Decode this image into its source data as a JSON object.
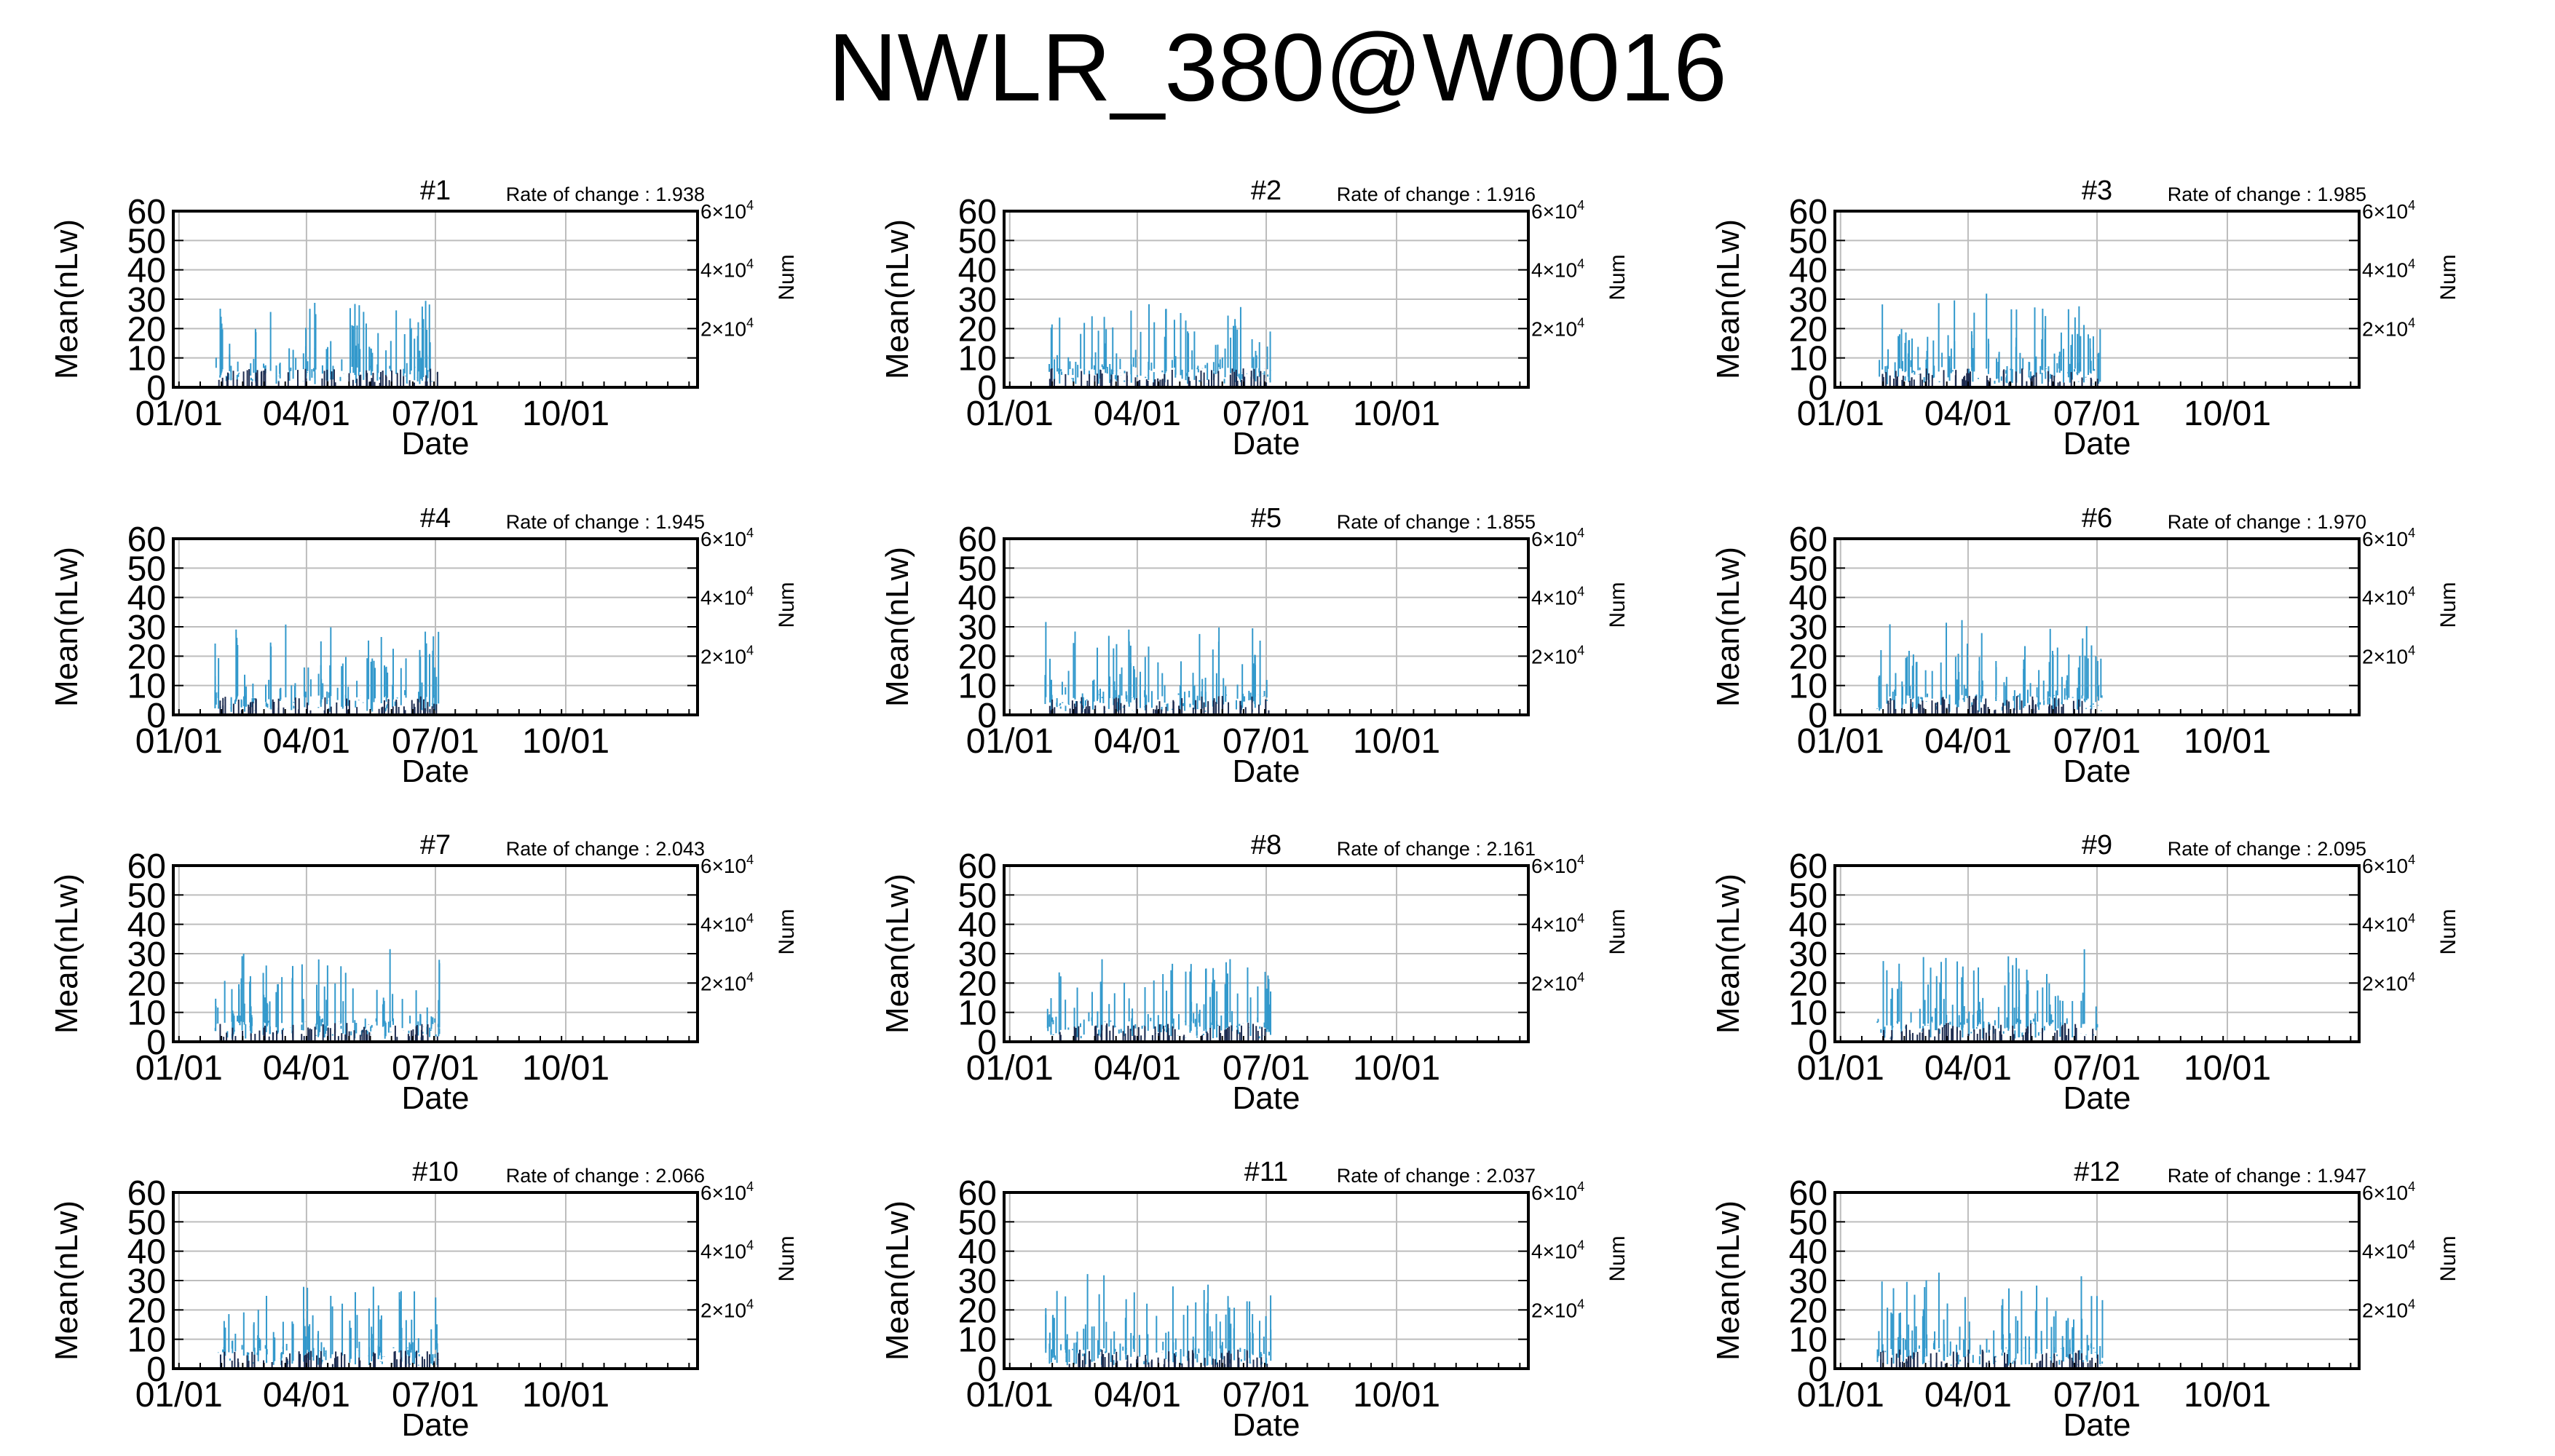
{
  "title": "NWLR_380@W0016",
  "chart_data": [
    {
      "type": "scatter",
      "title": "#1",
      "rate_label": "Rate of change : 1.938"
    },
    {
      "type": "scatter",
      "title": "#2",
      "rate_label": "Rate of change : 1.916"
    },
    {
      "type": "scatter",
      "title": "#3",
      "rate_label": "Rate of change : 1.985"
    },
    {
      "type": "scatter",
      "title": "#4",
      "rate_label": "Rate of change : 1.945"
    },
    {
      "type": "scatter",
      "title": "#5",
      "rate_label": "Rate of change : 1.855"
    },
    {
      "type": "scatter",
      "title": "#6",
      "rate_label": "Rate of change : 1.970"
    },
    {
      "type": "scatter",
      "title": "#7",
      "rate_label": "Rate of change : 2.043"
    },
    {
      "type": "scatter",
      "title": "#8",
      "rate_label": "Rate of change : 2.161"
    },
    {
      "type": "scatter",
      "title": "#9",
      "rate_label": "Rate of change : 2.095"
    },
    {
      "type": "scatter",
      "title": "#10",
      "rate_label": "Rate of change : 2.066"
    },
    {
      "type": "scatter",
      "title": "#11",
      "rate_label": "Rate of change : 2.037"
    },
    {
      "type": "scatter",
      "title": "#12",
      "rate_label": "Rate of change : 1.947"
    }
  ],
  "shared_axes": {
    "xlabel": "Date",
    "ylabel": "Mean(nLw)",
    "y2label": "Num",
    "x_ticks": [
      "01/01",
      "04/01",
      "07/01",
      "10/01"
    ],
    "x_tick_days": [
      0,
      90,
      181,
      273
    ],
    "x_range_days": [
      -4,
      366
    ],
    "ylim": [
      0,
      60
    ],
    "y_ticks": [
      0,
      10,
      20,
      30,
      40,
      50,
      60
    ],
    "y2lim": [
      0,
      60000
    ],
    "y2_ticks": [
      {
        "base": "2×10",
        "exp": "4"
      },
      {
        "base": "4×10",
        "exp": "4"
      },
      {
        "base": "6×10",
        "exp": "4"
      }
    ],
    "y2_tick_values": [
      20000,
      40000,
      60000
    ],
    "grid": true,
    "color": "#3399cc"
  }
}
